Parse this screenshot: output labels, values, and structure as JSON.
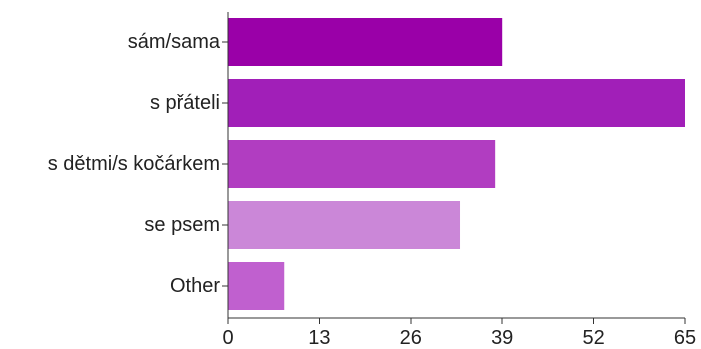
{
  "chart_data": {
    "type": "bar",
    "orientation": "horizontal",
    "title": "",
    "xlabel": "",
    "ylabel": "",
    "categories": [
      "sám/sama",
      "s přáteli",
      "s dětmi/s kočárkem",
      "se psem",
      "Other"
    ],
    "values": [
      39,
      65,
      38,
      33,
      8
    ],
    "colors": [
      "#9a00a8",
      "#a11fb8",
      "#b13dc1",
      "#cb87d8",
      "#c060cf"
    ],
    "xlim": [
      0,
      65
    ],
    "xticks": [
      "0",
      "13",
      "26",
      "39",
      "52",
      "65"
    ],
    "grid": false,
    "legend": "none"
  }
}
